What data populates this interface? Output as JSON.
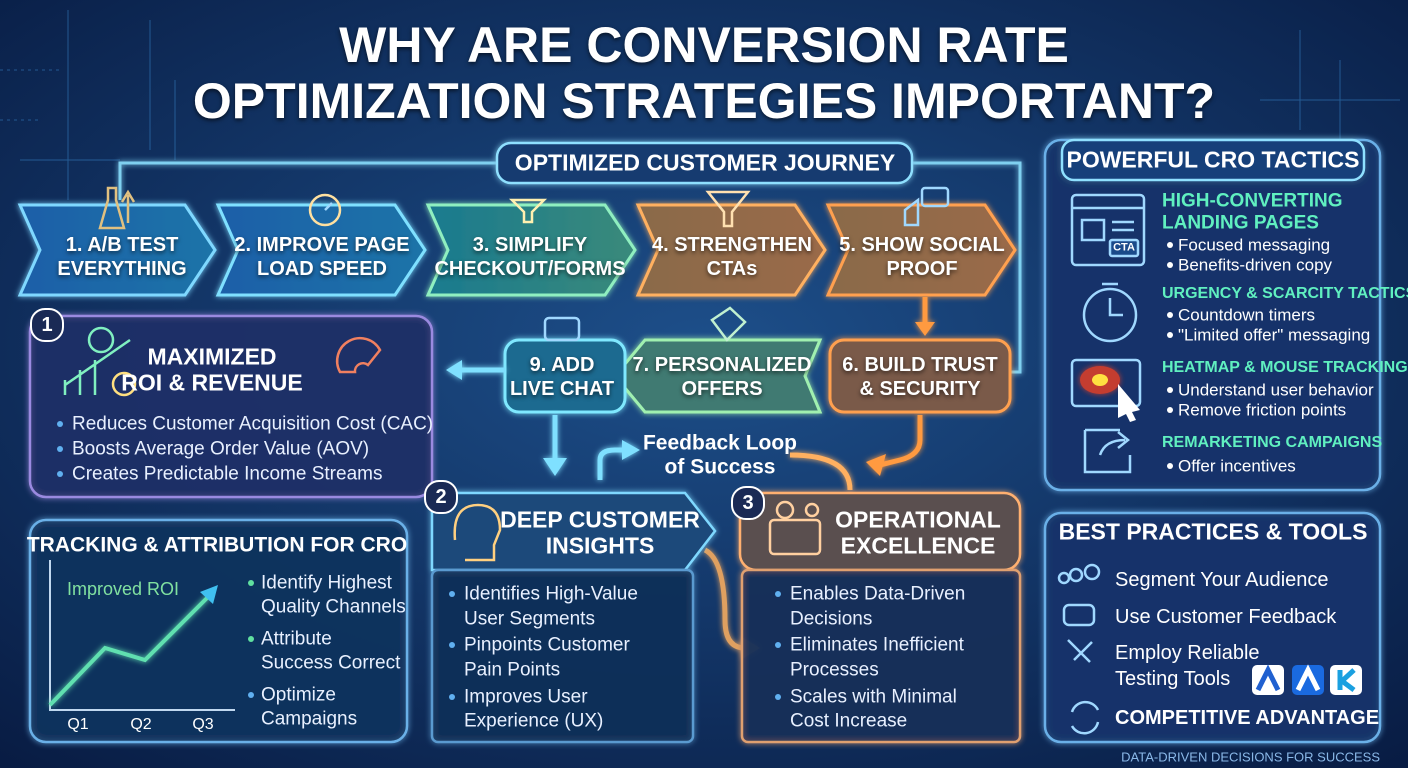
{
  "title": [
    "WHY ARE CONVERSION RATE",
    "OPTIMIZATION STRATEGIES IMPORTANT?"
  ],
  "journey": {
    "label": "OPTIMIZED CUSTOMER JOURNEY",
    "steps": [
      {
        "lines": [
          "1. A/B TEST",
          "EVERYTHING"
        ]
      },
      {
        "lines": [
          "2. IMPROVE PAGE",
          "LOAD SPEED"
        ]
      },
      {
        "lines": [
          "3. SIMPLIFY",
          "CHECKOUT/FORMS"
        ]
      },
      {
        "lines": [
          "4. STRENGTHEN",
          "CTAs"
        ]
      },
      {
        "lines": [
          "5. SHOW SOCIAL",
          "PROOF"
        ]
      },
      {
        "lines": [
          "6. BUILD TRUST",
          "& SECURITY"
        ]
      },
      {
        "lines": [
          "7. PERSONALIZED",
          "OFFERS"
        ]
      },
      {
        "lines": [
          "9. ADD",
          "LIVE CHAT"
        ]
      }
    ],
    "feedback": [
      "Feedback Loop",
      "of Success"
    ]
  },
  "benefits": [
    {
      "number": "1",
      "title": [
        "MAXIMIZED",
        "ROI & REVENUE"
      ],
      "bullets": [
        [
          "Reduces Customer Acquisition Cost (CAC)"
        ],
        [
          "Boosts Average Order Value (AOV)"
        ],
        [
          "Creates Predictable Income Streams"
        ]
      ]
    },
    {
      "number": "2",
      "title": [
        "DEEP CUSTOMER",
        "INSIGHTS"
      ],
      "bullets": [
        [
          "Identifies High-Value",
          "User Segments"
        ],
        [
          "Pinpoints Customer",
          "Pain Points"
        ],
        [
          "Improves User",
          "Experience (UX)"
        ]
      ]
    },
    {
      "number": "3",
      "title": [
        "OPERATIONAL",
        "EXCELLENCE"
      ],
      "bullets": [
        [
          "Enables Data-Driven",
          "Decisions"
        ],
        [
          "Eliminates Inefficient",
          "Processes"
        ],
        [
          "Scales with Minimal",
          "Cost Increase"
        ]
      ]
    }
  ],
  "tracking": {
    "title": "TRACKING & ATTRIBUTION FOR CRO",
    "chart_label": "Improved ROI",
    "quarters": [
      "Q1",
      "Q2",
      "Q3"
    ],
    "bullets": [
      [
        "Identify Highest",
        "Quality Channels"
      ],
      [
        "Attribute",
        "Success Correct"
      ],
      [
        "Optimize",
        "Campaigns"
      ]
    ]
  },
  "tactics": {
    "title": "POWERFUL CRO TACTICS",
    "icon_text": "CTA",
    "items": [
      {
        "heading": [
          "HIGH-CONVERTING",
          "LANDING PAGES"
        ],
        "bullets": [
          "Focused messaging",
          "Benefits-driven copy"
        ]
      },
      {
        "heading": [
          "URGENCY & SCARCITY TACTICS"
        ],
        "bullets": [
          "Countdown timers",
          "\"Limited offer\" messaging"
        ]
      },
      {
        "heading": [
          "HEATMAP & MOUSE TRACKING"
        ],
        "bullets": [
          "Understand user behavior",
          "Remove friction points"
        ]
      },
      {
        "heading": [
          "REMARKETING CAMPAIGNS"
        ],
        "bullets": [
          "Offer incentives"
        ]
      }
    ]
  },
  "best_practices": {
    "title": "BEST PRACTICES & TOOLS",
    "items": [
      [
        "Segment Your Audience"
      ],
      [
        "Use Customer Feedback"
      ],
      [
        "Employ Reliable",
        "Testing Tools"
      ]
    ],
    "highlight": "COMPETITIVE ADVANTAGE"
  },
  "footer": "DATA-DRIVEN DECISIONS FOR SUCCESS"
}
